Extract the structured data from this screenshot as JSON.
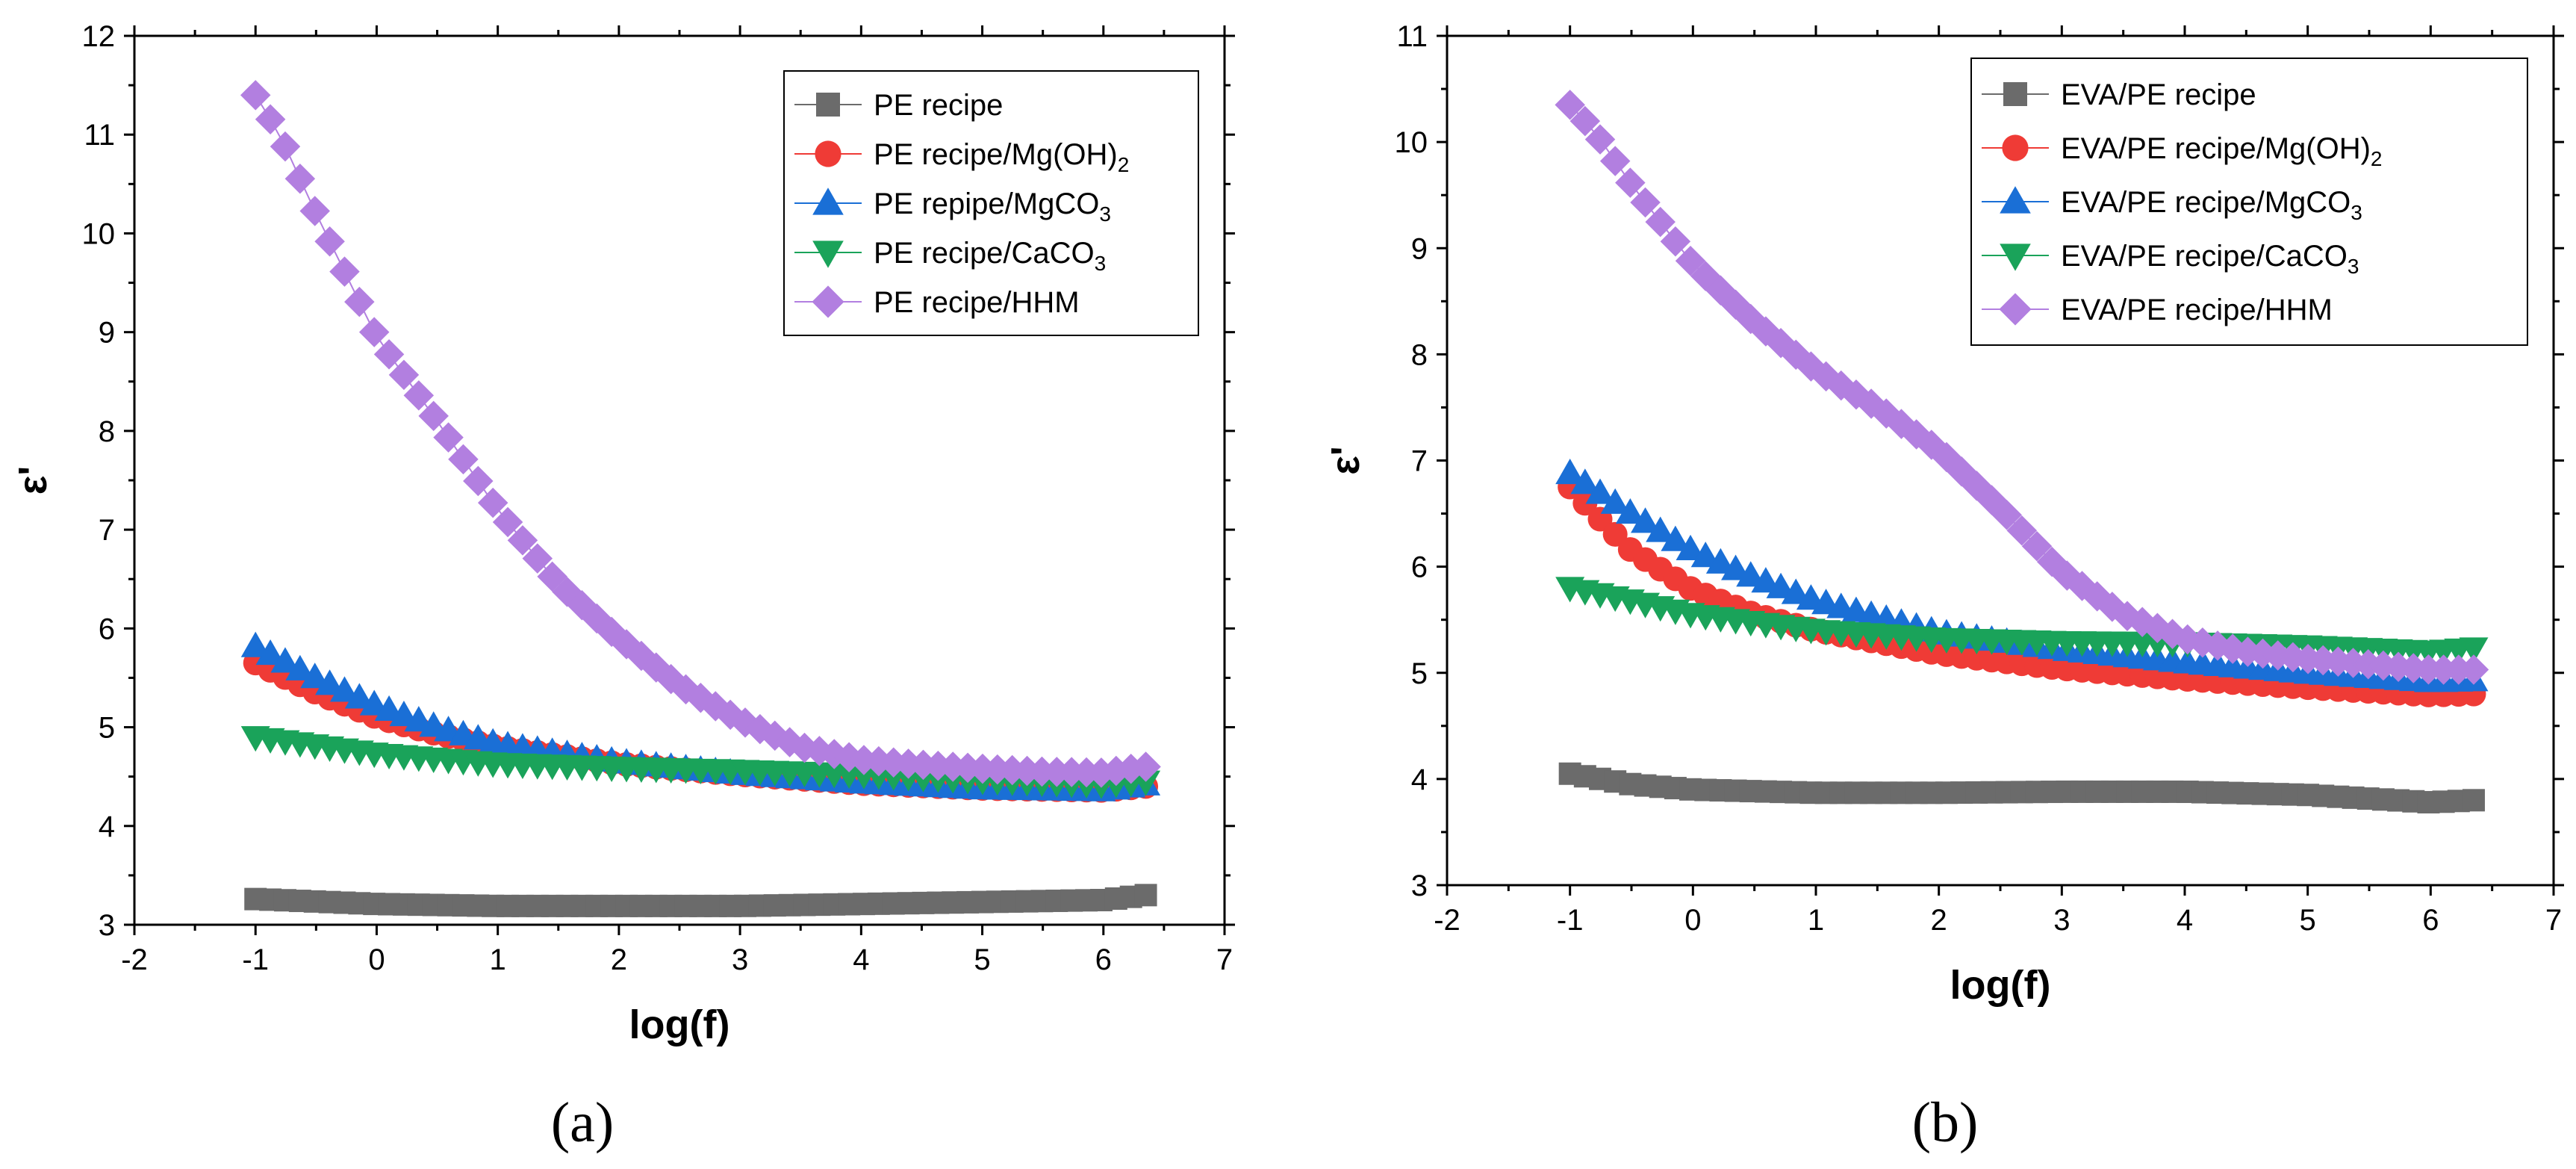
{
  "colors": {
    "gray": "#6b6b6b",
    "red": "#ef3b36",
    "blue": "#1a6fd6",
    "green": "#1aa35a",
    "purple": "#b27fe0"
  },
  "chart_data": [
    {
      "type": "scatter",
      "panel_label": "(a)",
      "xlabel": "log(f)",
      "ylabel": "ε'",
      "xlim": [
        -2,
        7
      ],
      "ylim": [
        3,
        12
      ],
      "x_ticks": [
        -2,
        -1,
        0,
        1,
        2,
        3,
        4,
        5,
        6,
        7
      ],
      "y_ticks": [
        3,
        4,
        5,
        6,
        7,
        8,
        9,
        10,
        11,
        12
      ],
      "grid": false,
      "legend_position": "top-right",
      "x_range": [
        -1,
        6.35
      ],
      "series": [
        {
          "name": "PE recipe",
          "marker": "square",
          "color": "#6b6b6b",
          "x": [
            -1,
            0,
            1,
            2,
            3,
            4,
            5,
            6,
            6.35
          ],
          "y": [
            3.26,
            3.21,
            3.19,
            3.19,
            3.19,
            3.21,
            3.23,
            3.25,
            3.3
          ]
        },
        {
          "name": "PE recipe/Mg(OH)2",
          "name_main": "PE recipe/Mg(OH)",
          "name_sub": "2",
          "marker": "circle",
          "color": "#ef3b36",
          "x": [
            -1,
            -0.5,
            0,
            0.5,
            1,
            2,
            3,
            4,
            5,
            6,
            6.35
          ],
          "y": [
            5.65,
            5.35,
            5.1,
            4.93,
            4.8,
            4.63,
            4.52,
            4.43,
            4.38,
            4.36,
            4.4
          ]
        },
        {
          "name": "PE repipe/MgCO3",
          "name_main": "PE repipe/MgCO",
          "name_sub": "3",
          "marker": "triangle-up",
          "color": "#1a6fd6",
          "x": [
            -1,
            -0.5,
            0,
            0.5,
            1,
            2,
            3,
            4,
            5,
            6,
            6.35
          ],
          "y": [
            5.82,
            5.5,
            5.22,
            5.0,
            4.83,
            4.65,
            4.53,
            4.44,
            4.38,
            4.36,
            4.42
          ]
        },
        {
          "name": "PE recipe/CaCO3",
          "name_main": "PE recipe/CaCO",
          "name_sub": "3",
          "marker": "triangle-down",
          "color": "#1aa35a",
          "x": [
            -1,
            0,
            1,
            2,
            3,
            4,
            5,
            6,
            6.35
          ],
          "y": [
            4.9,
            4.73,
            4.63,
            4.59,
            4.56,
            4.52,
            4.46,
            4.42,
            4.45
          ]
        },
        {
          "name": "PE recipe/HHM",
          "marker": "diamond",
          "color": "#b27fe0",
          "x": [
            -1,
            -0.8,
            -0.5,
            0,
            0.5,
            1,
            1.5,
            2,
            2.5,
            3,
            3.5,
            4,
            4.5,
            5,
            5.5,
            6,
            6.35
          ],
          "y": [
            11.4,
            11.0,
            10.2,
            8.95,
            8.1,
            7.2,
            6.45,
            5.9,
            5.42,
            5.07,
            4.8,
            4.67,
            4.62,
            4.58,
            4.55,
            4.54,
            4.6
          ]
        }
      ]
    },
    {
      "type": "scatter",
      "panel_label": "(b)",
      "xlabel": "log(f)",
      "ylabel": "ε'",
      "xlim": [
        -2,
        7
      ],
      "ylim": [
        3,
        11
      ],
      "x_ticks": [
        -2,
        -1,
        0,
        1,
        2,
        3,
        4,
        5,
        6,
        7
      ],
      "y_ticks": [
        3,
        4,
        5,
        6,
        7,
        8,
        9,
        10,
        11
      ],
      "grid": false,
      "legend_position": "top-right",
      "x_range": [
        -1,
        6.35
      ],
      "series": [
        {
          "name": "EVA/PE recipe",
          "marker": "square",
          "color": "#6b6b6b",
          "x": [
            -1,
            -0.5,
            0,
            1,
            2,
            3,
            4,
            5,
            6,
            6.35
          ],
          "y": [
            4.05,
            3.95,
            3.9,
            3.87,
            3.87,
            3.88,
            3.88,
            3.85,
            3.78,
            3.8
          ]
        },
        {
          "name": "EVA/PE recipe/Mg(OH)2",
          "name_main": "EVA/PE recipe/Mg(OH)",
          "name_sub": "2",
          "marker": "circle",
          "color": "#ef3b36",
          "x": [
            -1,
            -0.8,
            -0.5,
            0,
            0.5,
            1,
            2,
            3,
            4,
            5,
            6,
            6.35
          ],
          "y": [
            6.75,
            6.5,
            6.15,
            5.78,
            5.55,
            5.4,
            5.18,
            5.04,
            4.94,
            4.86,
            4.79,
            4.8
          ]
        },
        {
          "name": "EVA/PE recipe/MgCO3",
          "name_main": "EVA/PE recipe/MgCO",
          "name_sub": "3",
          "marker": "triangle-up",
          "color": "#1a6fd6",
          "x": [
            -1,
            -0.5,
            0,
            0.5,
            1,
            2,
            3,
            4,
            5,
            6,
            6.35
          ],
          "y": [
            6.88,
            6.5,
            6.15,
            5.9,
            5.68,
            5.38,
            5.22,
            5.1,
            5.0,
            4.92,
            4.93
          ]
        },
        {
          "name": "EVA/PE recipe/CaCO3",
          "name_main": "EVA/PE recipe/CaCO",
          "name_sub": "3",
          "marker": "triangle-down",
          "color": "#1aa35a",
          "x": [
            -1,
            -0.5,
            0,
            1,
            2,
            3,
            4,
            5,
            6,
            6.35
          ],
          "y": [
            5.8,
            5.68,
            5.55,
            5.4,
            5.32,
            5.29,
            5.28,
            5.25,
            5.2,
            5.23
          ]
        },
        {
          "name": "EVA/PE recipe/HHM",
          "marker": "diamond",
          "color": "#b27fe0",
          "x": [
            -1,
            -0.8,
            -0.5,
            0,
            0.5,
            1,
            1.5,
            2,
            2.5,
            3,
            3.5,
            4,
            4.5,
            5,
            5.5,
            6,
            6.35
          ],
          "y": [
            10.35,
            10.1,
            9.6,
            8.85,
            8.3,
            7.85,
            7.5,
            7.1,
            6.55,
            5.95,
            5.55,
            5.32,
            5.2,
            5.13,
            5.08,
            5.03,
            5.03
          ]
        }
      ]
    }
  ]
}
